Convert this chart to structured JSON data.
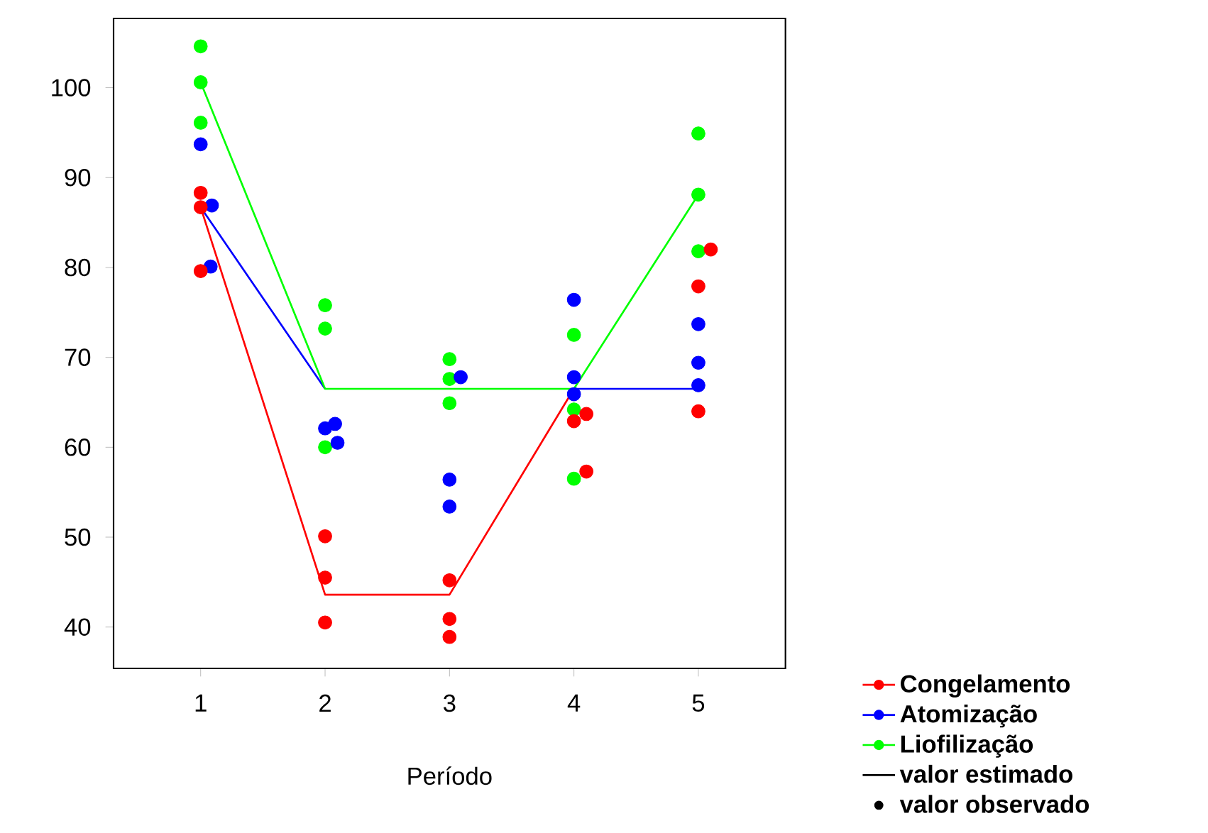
{
  "chart_data": {
    "type": "line",
    "xlabel": "Período",
    "xlim": [
      0.3,
      5.7
    ],
    "xticks": [
      1,
      2,
      3,
      4,
      5
    ],
    "ylim": [
      35.4,
      107.7
    ],
    "yticks": [
      40,
      50,
      60,
      70,
      80,
      90,
      100
    ],
    "legend": "bottom right",
    "grid": false,
    "series": [
      {
        "name": "Congelamento",
        "color": "#ff0000",
        "x": [
          1,
          2,
          3,
          4
        ],
        "values": [
          86.7,
          43.6,
          43.6,
          66.5
        ]
      },
      {
        "name": "Atomização",
        "color": "#0000ff",
        "x": [
          1,
          2,
          3,
          4,
          5
        ],
        "values": [
          86.7,
          66.5,
          null,
          66.5,
          66.5
        ]
      },
      {
        "name": "Liofilização",
        "color": "#00ff00",
        "x": [
          1,
          2,
          3,
          4,
          5
        ],
        "values": [
          100.6,
          66.5,
          66.5,
          66.5,
          88.1
        ]
      },
      {
        "name": "valor estimado",
        "color": "#000000"
      },
      {
        "name": "valor observado",
        "type": "scatter",
        "color": "#000000"
      },
      {
        "type": "scatter",
        "color": "#00ff00",
        "x": [
          1,
          1,
          1,
          2,
          2,
          2,
          3,
          3,
          3,
          4,
          4,
          4,
          5,
          5,
          5
        ],
        "values": [
          104.6,
          100.6,
          96.1,
          75.8,
          73.2,
          60.0,
          69.8,
          67.6,
          64.9,
          72.5,
          64.2,
          56.5,
          94.9,
          88.1,
          81.8
        ]
      },
      {
        "type": "scatter",
        "color": "#0000ff",
        "x": [
          1,
          1.09,
          1.08,
          2,
          2.08,
          2.1,
          3.09,
          3,
          3,
          4,
          4,
          4,
          5,
          5,
          5
        ],
        "values": [
          93.7,
          86.9,
          80.1,
          62.1,
          62.6,
          60.5,
          67.8,
          56.4,
          53.4,
          76.4,
          67.8,
          65.9,
          73.7,
          69.4,
          66.9
        ]
      },
      {
        "type": "scatter",
        "color": "#ff0000",
        "x": [
          1,
          1,
          1,
          2,
          2,
          2,
          3,
          3,
          3,
          4,
          4.1,
          4.1,
          5.1,
          5,
          5
        ],
        "values": [
          88.3,
          86.7,
          79.6,
          50.1,
          45.5,
          40.5,
          45.2,
          40.9,
          38.9,
          62.9,
          63.7,
          57.3,
          82.0,
          77.9,
          64.0
        ]
      }
    ]
  }
}
